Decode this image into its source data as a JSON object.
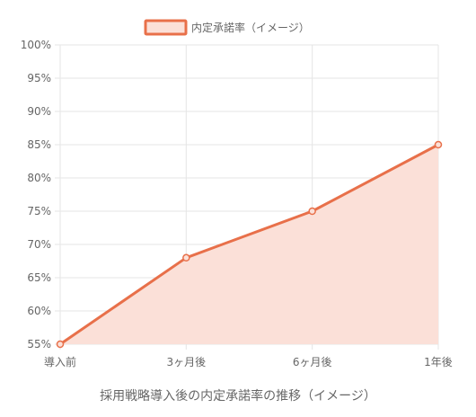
{
  "chart_data": {
    "type": "area",
    "categories": [
      "導入前",
      "3ヶ月後",
      "6ヶ月後",
      "1年後"
    ],
    "series": [
      {
        "name": "内定承諾率（イメージ）",
        "values": [
          55,
          68,
          75,
          85
        ],
        "line_color": "#e8704a",
        "fill_color": "#fbe0d8"
      }
    ],
    "ylim": [
      55,
      100
    ],
    "yticks": [
      "100%",
      "95%",
      "90%",
      "85%",
      "80%",
      "75%",
      "70%",
      "65%",
      "60%",
      "55%"
    ],
    "xlabel": "採用戦略導入後の内定承諾率の推移（イメージ）",
    "ylabel": "",
    "legend_position": "top-center",
    "grid": true
  },
  "colors": {
    "grid": "#e5e5e5",
    "tick_text": "#666666",
    "title_text": "#666666"
  }
}
